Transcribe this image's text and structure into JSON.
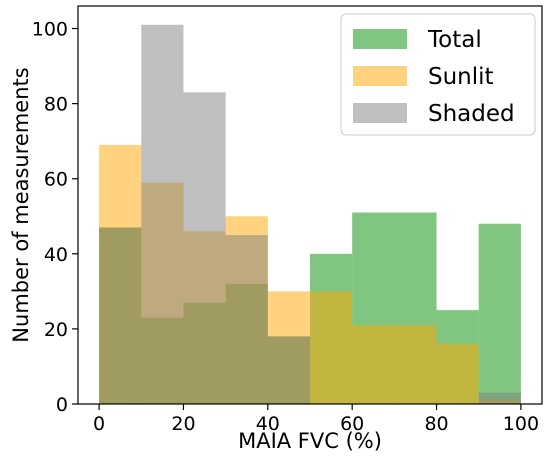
{
  "chart_data": {
    "type": "bar",
    "title": "",
    "xlabel": "MAIA FVC (%)",
    "ylabel": "Number of measurements",
    "xlim": [
      -5,
      105
    ],
    "ylim": [
      0,
      106
    ],
    "xticks": [
      "0",
      "20",
      "40",
      "60",
      "80",
      "100"
    ],
    "yticks": [
      "0",
      "20",
      "40",
      "60",
      "80",
      "100"
    ],
    "grid": false,
    "legend_position": "top-right",
    "bin_edges": [
      0,
      10,
      20,
      30,
      40,
      50,
      60,
      70,
      80,
      90,
      100
    ],
    "series": [
      {
        "name": "Total",
        "color": "#2ca02c",
        "opacity": 0.6,
        "values": [
          47,
          23,
          27,
          32,
          18,
          40,
          51,
          51,
          25,
          48
        ]
      },
      {
        "name": "Sunlit",
        "color": "#ffa500",
        "opacity": 0.5,
        "values": [
          69,
          59,
          46,
          50,
          30,
          30,
          21,
          21,
          16,
          1
        ]
      },
      {
        "name": "Shaded",
        "color": "#808080",
        "opacity": 0.5,
        "values": [
          47,
          101,
          83,
          45,
          18,
          0,
          0,
          0,
          0,
          3
        ]
      }
    ]
  }
}
